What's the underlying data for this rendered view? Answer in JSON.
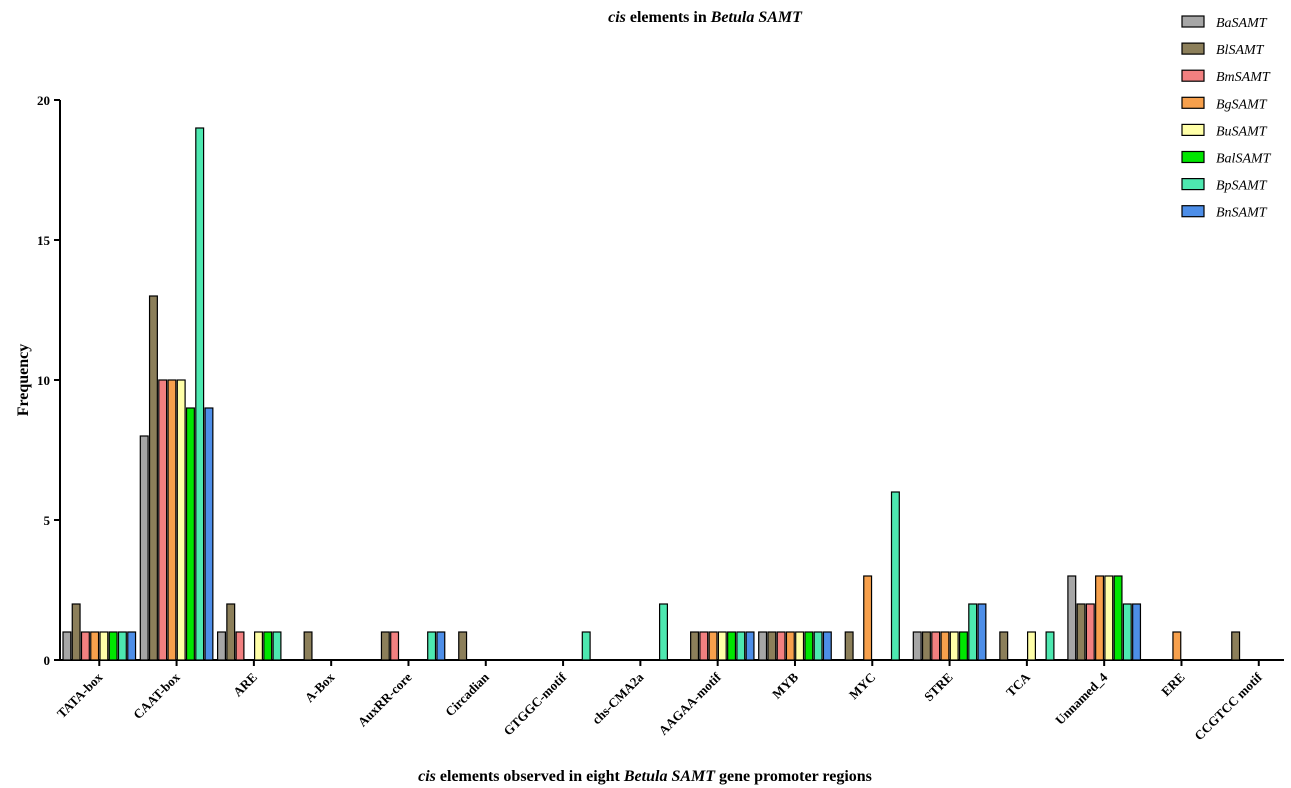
{
  "chart_data": {
    "type": "bar",
    "title": {
      "italic_part": "cis",
      "plain_part": " elements in ",
      "bold_italic_part": "Betula SAMT"
    },
    "xlabel": {
      "italic1": "cis",
      "text1": " elements observed in eight ",
      "italic2": "Betula SAMT",
      "text2": " gene promoter regions"
    },
    "ylabel": "Frequency",
    "ylim": [
      0,
      20
    ],
    "yticks": [
      "0",
      "5",
      "10",
      "15",
      "20"
    ],
    "legend_position": "top-right",
    "categories": [
      "TATA-box",
      "CAAT-box",
      "ARE",
      "A-Box",
      "AuxRR-core",
      "Circadian",
      "GTGGC-motif",
      "chs-CMA2a",
      "AAGAA-motif",
      "MYB",
      "MYC",
      "STRE",
      "TCA",
      "Unnamed_4",
      "ERE",
      "CCGTCC motif"
    ],
    "series": [
      {
        "name": "BaSAMT",
        "color": "#a6a6a6",
        "values": [
          1,
          8,
          1,
          0,
          0,
          0,
          0,
          0,
          0,
          1,
          0,
          1,
          0,
          3,
          0,
          0
        ]
      },
      {
        "name": "BlSAMT",
        "color": "#8c7f5a",
        "values": [
          2,
          13,
          2,
          1,
          1,
          1,
          0,
          0,
          1,
          1,
          1,
          1,
          1,
          2,
          0,
          1
        ]
      },
      {
        "name": "BmSAMT",
        "color": "#f28080",
        "values": [
          1,
          10,
          1,
          0,
          1,
          0,
          0,
          0,
          1,
          1,
          0,
          1,
          0,
          2,
          0,
          0
        ]
      },
      {
        "name": "BgSAMT",
        "color": "#f7a04c",
        "values": [
          1,
          10,
          0,
          0,
          0,
          0,
          0,
          0,
          1,
          1,
          3,
          1,
          0,
          3,
          1,
          0
        ]
      },
      {
        "name": "BuSAMT",
        "color": "#ffffa8",
        "values": [
          1,
          10,
          1,
          0,
          0,
          0,
          0,
          0,
          1,
          1,
          0,
          1,
          1,
          3,
          0,
          0
        ]
      },
      {
        "name": "BalSAMT",
        "color": "#00e600",
        "values": [
          1,
          9,
          1,
          0,
          0,
          0,
          0,
          0,
          1,
          1,
          0,
          1,
          0,
          3,
          0,
          0
        ]
      },
      {
        "name": "BpSAMT",
        "color": "#4de8b0",
        "values": [
          1,
          19,
          1,
          0,
          1,
          0,
          1,
          2,
          1,
          1,
          6,
          2,
          1,
          2,
          0,
          0
        ]
      },
      {
        "name": "BnSAMT",
        "color": "#4d8ee8",
        "values": [
          1,
          9,
          0,
          0,
          1,
          0,
          0,
          0,
          1,
          1,
          0,
          2,
          0,
          2,
          0,
          0
        ]
      }
    ]
  }
}
